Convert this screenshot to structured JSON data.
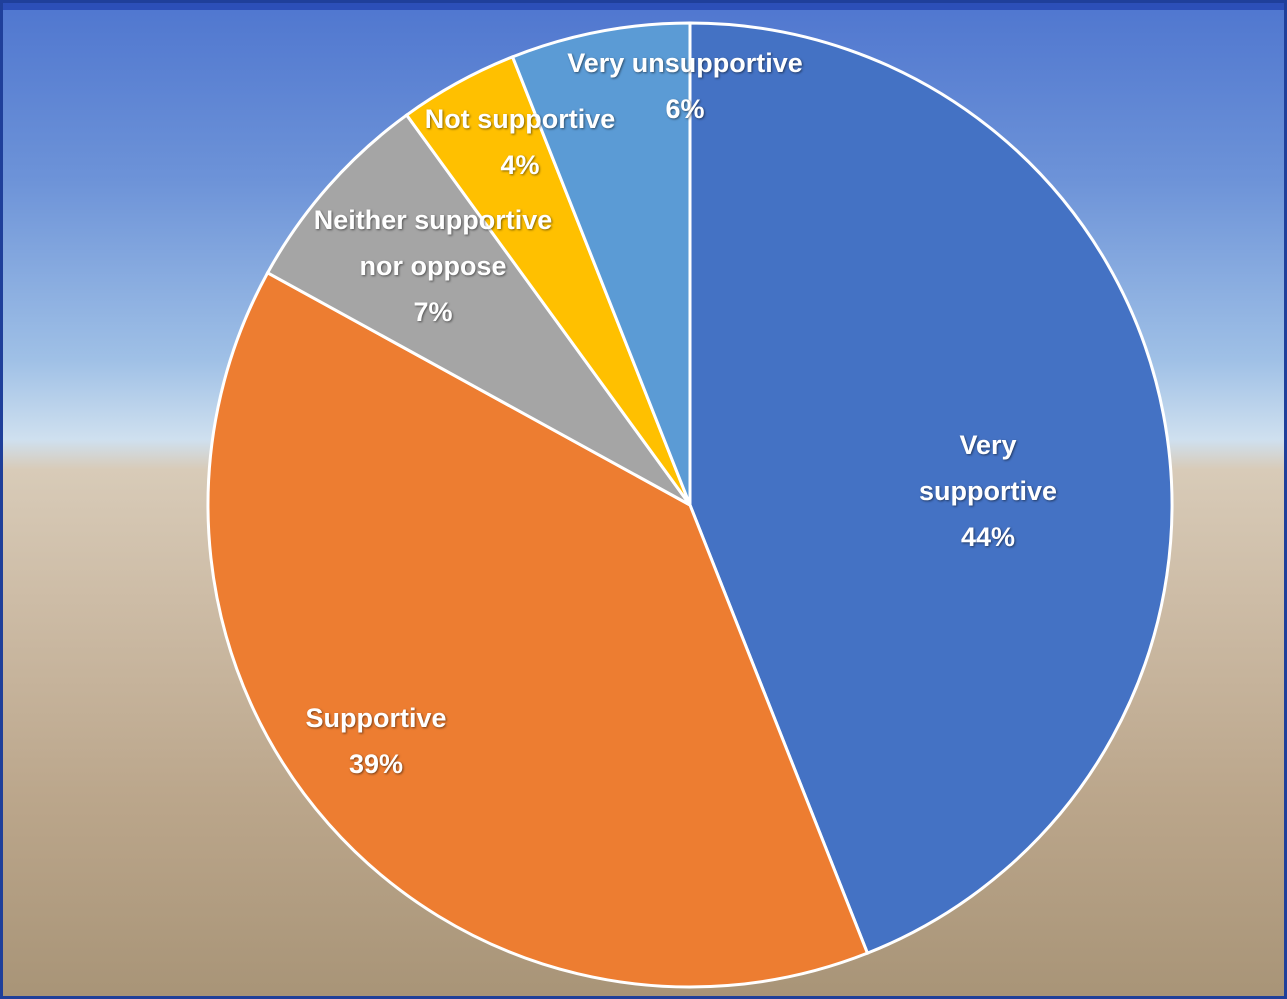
{
  "chart_data": {
    "type": "pie",
    "categories": [
      "Very supportive",
      "Supportive",
      "Neither supportive nor oppose",
      "Not supportive",
      "Very unsupportive"
    ],
    "values": [
      44,
      39,
      7,
      4,
      6
    ],
    "value_labels": [
      "44%",
      "39%",
      "7%",
      "4%",
      "6%"
    ],
    "colors": [
      "#4472c4",
      "#ed7d31",
      "#a5a5a5",
      "#ffc000",
      "#5b9bd5"
    ]
  }
}
